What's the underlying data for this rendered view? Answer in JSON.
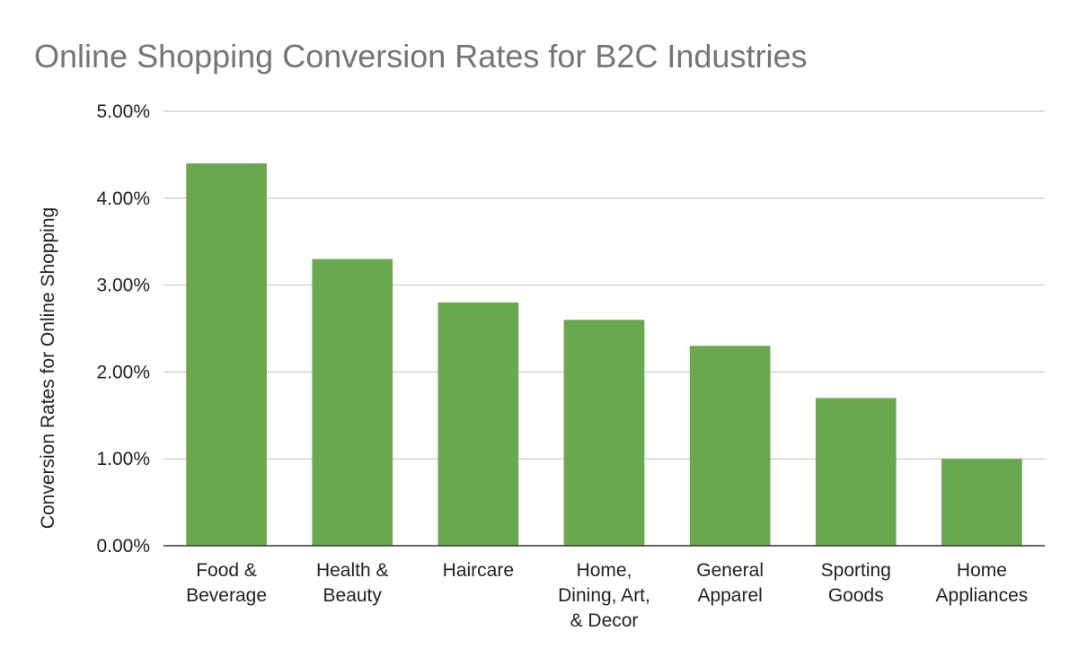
{
  "chart_data": {
    "type": "bar",
    "title": "Online Shopping Conversion Rates for B2C Industries",
    "ylabel": "Conversion Rates for Online Shopping",
    "xlabel": "",
    "categories": [
      [
        "Food &",
        "Beverage"
      ],
      [
        "Health &",
        "Beauty"
      ],
      [
        "Haircare"
      ],
      [
        "Home,",
        "Dining, Art,",
        "& Decor"
      ],
      [
        "General",
        "Apparel"
      ],
      [
        "Sporting",
        "Goods"
      ],
      [
        "Home",
        "Appliances"
      ]
    ],
    "values": [
      4.4,
      3.3,
      2.8,
      2.6,
      2.3,
      1.7,
      1.0
    ],
    "value_unit": "%",
    "ylim": [
      0,
      5
    ],
    "yticks": [
      "0.00%",
      "1.00%",
      "2.00%",
      "3.00%",
      "4.00%",
      "5.00%"
    ],
    "grid": true,
    "legend": "none",
    "bar_color": "#6aa84f"
  }
}
